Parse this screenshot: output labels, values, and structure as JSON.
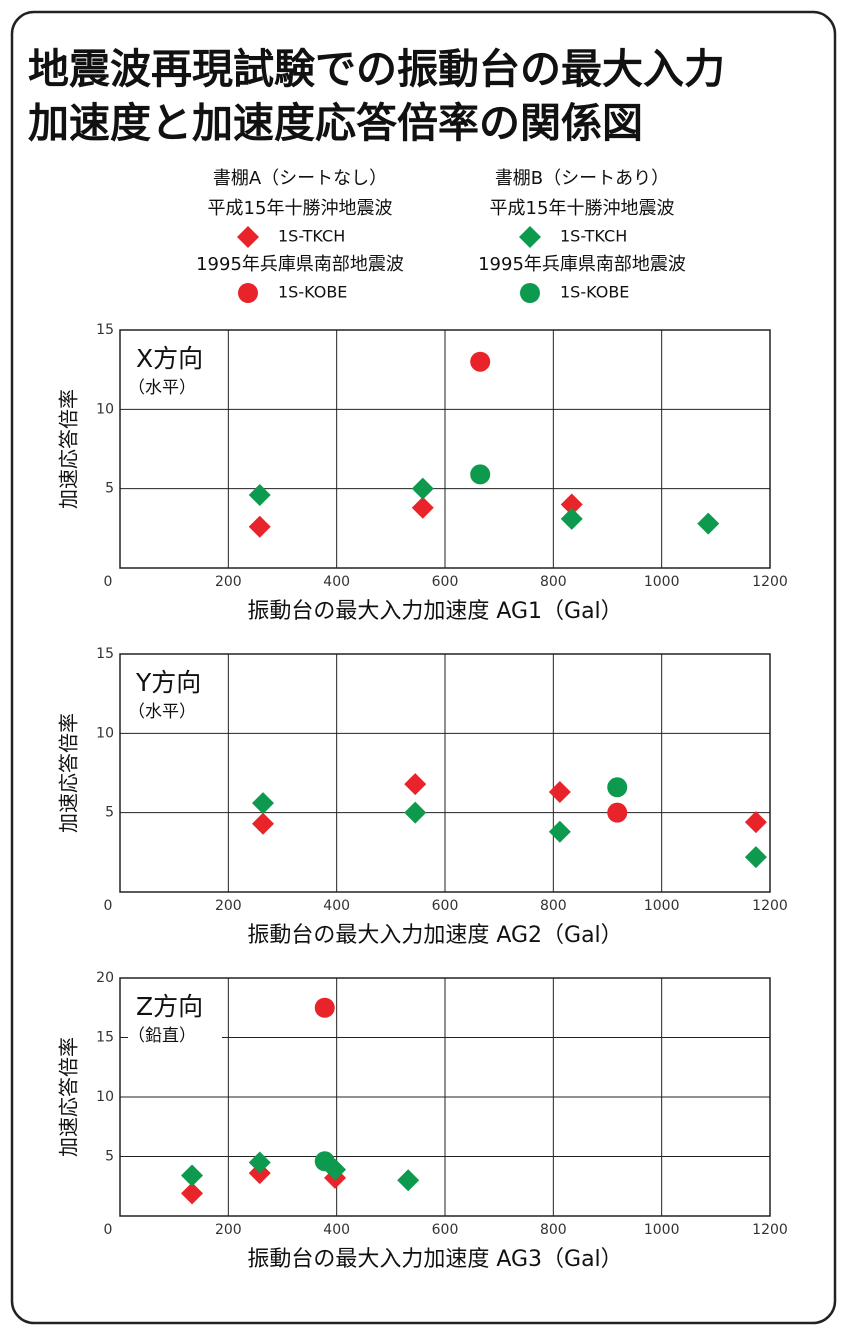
{
  "title": [
    "地震波再現試験での振動台の最大入力",
    "加速度と加速度応答倍率の関係図"
  ],
  "legend": {
    "columns": [
      {
        "title": "書棚A（シートなし）",
        "color": "#e8232a"
      },
      {
        "title": "書棚B（シートあり）",
        "color": "#0e9a4e"
      }
    ],
    "groups": [
      {
        "title": "平成15年十勝沖地震波",
        "name": "1S-TKCH",
        "marker": "diamond"
      },
      {
        "title": "1995年兵庫県南部地震波",
        "name": "1S-KOBE",
        "marker": "circle"
      }
    ]
  },
  "chart_data": [
    {
      "type": "scatter",
      "label": "X方向",
      "sublabel": "（水平）",
      "xlabel": "振動台の最大入力加速度 AG1（Gal）",
      "ylabel": "加速応答倍率",
      "xlim": [
        0,
        1200
      ],
      "xticks": [
        0,
        200,
        400,
        600,
        800,
        1000,
        1200
      ],
      "ylim": [
        0,
        15
      ],
      "yticks": [
        0,
        5,
        10,
        15
      ],
      "grid": true,
      "series": [
        {
          "color": "#e8232a",
          "marker": "diamond",
          "x": [
            258,
            559,
            834
          ],
          "values": [
            2.6,
            3.8,
            4.0
          ]
        },
        {
          "color": "#e8232a",
          "marker": "circle",
          "x": [
            665
          ],
          "values": [
            13.0
          ]
        },
        {
          "color": "#0e9a4e",
          "marker": "diamond",
          "x": [
            258,
            559,
            834,
            1086
          ],
          "values": [
            4.6,
            5.0,
            3.1,
            2.8
          ]
        },
        {
          "color": "#0e9a4e",
          "marker": "circle",
          "x": [
            665
          ],
          "values": [
            5.9
          ]
        }
      ]
    },
    {
      "type": "scatter",
      "label": "Y方向",
      "sublabel": "（水平）",
      "xlabel": "振動台の最大入力加速度 AG2（Gal）",
      "ylabel": "加速応答倍率",
      "xlim": [
        0,
        1200
      ],
      "xticks": [
        0,
        200,
        400,
        600,
        800,
        1000,
        1200
      ],
      "ylim": [
        0,
        15
      ],
      "yticks": [
        0,
        5,
        10,
        15
      ],
      "grid": true,
      "series": [
        {
          "color": "#e8232a",
          "marker": "diamond",
          "x": [
            264,
            545,
            812,
            1174
          ],
          "values": [
            4.3,
            6.8,
            6.3,
            4.4
          ]
        },
        {
          "color": "#e8232a",
          "marker": "circle",
          "x": [
            918
          ],
          "values": [
            5.0
          ]
        },
        {
          "color": "#0e9a4e",
          "marker": "diamond",
          "x": [
            264,
            545,
            812,
            1174
          ],
          "values": [
            5.6,
            5.0,
            3.8,
            2.2
          ]
        },
        {
          "color": "#0e9a4e",
          "marker": "circle",
          "x": [
            918
          ],
          "values": [
            6.6
          ]
        }
      ]
    },
    {
      "type": "scatter",
      "label": "Z方向",
      "sublabel": "（鉛直）",
      "xlabel": "振動台の最大入力加速度 AG3（Gal）",
      "ylabel": "加速応答倍率",
      "xlim": [
        0,
        1200
      ],
      "xticks": [
        0,
        200,
        400,
        600,
        800,
        1000,
        1200
      ],
      "ylim": [
        0,
        20
      ],
      "yticks": [
        0,
        5,
        10,
        15,
        20
      ],
      "grid": true,
      "series": [
        {
          "color": "#e8232a",
          "marker": "diamond",
          "x": [
            133,
            258,
            397
          ],
          "values": [
            1.9,
            3.6,
            3.2
          ]
        },
        {
          "color": "#e8232a",
          "marker": "circle",
          "x": [
            378
          ],
          "values": [
            17.5
          ]
        },
        {
          "color": "#0e9a4e",
          "marker": "diamond",
          "x": [
            133,
            258,
            397,
            532
          ],
          "values": [
            3.4,
            4.5,
            3.9,
            3.0
          ]
        },
        {
          "color": "#0e9a4e",
          "marker": "circle",
          "x": [
            378
          ],
          "values": [
            4.6
          ]
        }
      ]
    }
  ]
}
